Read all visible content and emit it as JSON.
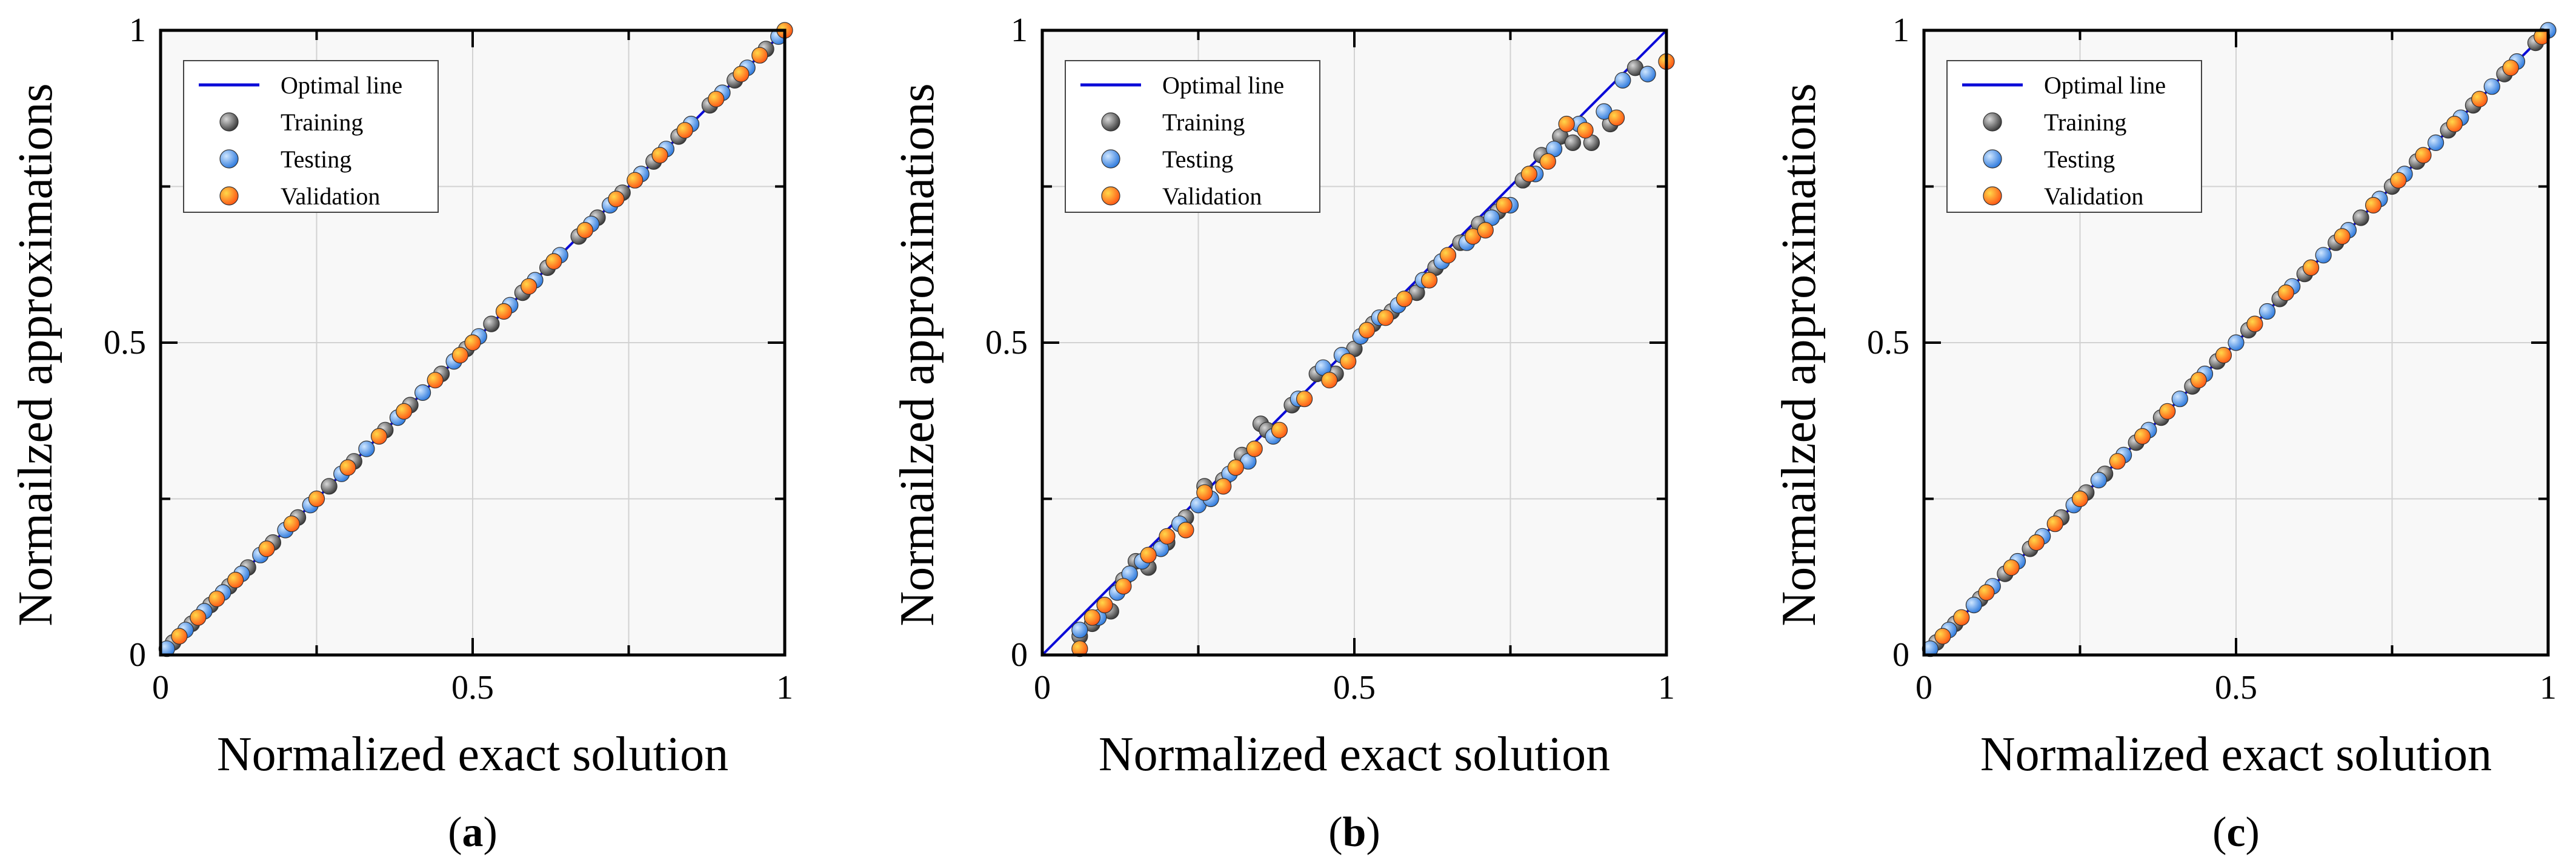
{
  "figure": {
    "colors": {
      "plot_bg": "#f8f8f8",
      "grid": "#d2d2d2",
      "optimal_line": "#0b0bd8",
      "training": "#2b2b2b",
      "training_hi": "#d8d8d8",
      "testing": "#1e6fd9",
      "testing_hi": "#cfe6ff",
      "validation": "#ff4a10",
      "validation_hi": "#ffd84a",
      "point_edge": "#333333"
    }
  },
  "chart_data": [
    {
      "type": "scatter",
      "panel_label": "a",
      "xlabel": "Normalized exact solution",
      "ylabel": "Normailzed approximations",
      "xlim": [
        0,
        1
      ],
      "ylim": [
        0,
        1
      ],
      "xticks": [
        "0",
        "0.5",
        "1"
      ],
      "yticks": [
        "0",
        "0.5",
        "1"
      ],
      "grid": true,
      "legend_position": "top-left",
      "legend": [
        "Optimal line",
        "Training",
        "Testing",
        "Validation"
      ],
      "optimal_line": {
        "x": [
          0,
          1
        ],
        "y": [
          0,
          1
        ]
      },
      "series": [
        {
          "name": "Training",
          "x": [
            0.02,
            0.05,
            0.08,
            0.11,
            0.14,
            0.18,
            0.22,
            0.27,
            0.31,
            0.36,
            0.4,
            0.45,
            0.49,
            0.53,
            0.58,
            0.62,
            0.67,
            0.7,
            0.74,
            0.79,
            0.83,
            0.88,
            0.92,
            0.97
          ],
          "y": [
            0.02,
            0.05,
            0.08,
            0.11,
            0.14,
            0.18,
            0.22,
            0.27,
            0.31,
            0.36,
            0.4,
            0.45,
            0.49,
            0.53,
            0.58,
            0.62,
            0.67,
            0.7,
            0.74,
            0.79,
            0.83,
            0.88,
            0.92,
            0.97
          ]
        },
        {
          "name": "Testing",
          "x": [
            0.01,
            0.04,
            0.07,
            0.1,
            0.13,
            0.16,
            0.2,
            0.24,
            0.29,
            0.33,
            0.38,
            0.42,
            0.47,
            0.51,
            0.56,
            0.6,
            0.64,
            0.69,
            0.72,
            0.77,
            0.81,
            0.85,
            0.9,
            0.94,
            0.99
          ],
          "y": [
            0.01,
            0.04,
            0.07,
            0.1,
            0.13,
            0.16,
            0.2,
            0.24,
            0.29,
            0.33,
            0.38,
            0.42,
            0.47,
            0.51,
            0.56,
            0.6,
            0.64,
            0.69,
            0.72,
            0.77,
            0.81,
            0.85,
            0.9,
            0.94,
            0.99
          ]
        },
        {
          "name": "Validation",
          "x": [
            0.03,
            0.06,
            0.09,
            0.12,
            0.17,
            0.21,
            0.25,
            0.3,
            0.35,
            0.39,
            0.44,
            0.48,
            0.5,
            0.55,
            0.59,
            0.63,
            0.68,
            0.73,
            0.76,
            0.8,
            0.84,
            0.89,
            0.93,
            0.96,
            1.0
          ],
          "y": [
            0.03,
            0.06,
            0.09,
            0.12,
            0.17,
            0.21,
            0.25,
            0.3,
            0.35,
            0.39,
            0.44,
            0.48,
            0.5,
            0.55,
            0.59,
            0.63,
            0.68,
            0.73,
            0.76,
            0.8,
            0.84,
            0.89,
            0.93,
            0.96,
            1.0
          ]
        }
      ]
    },
    {
      "type": "scatter",
      "panel_label": "b",
      "xlabel": "Normalized exact solution",
      "ylabel": "Normailzed approximations",
      "xlim": [
        0,
        1
      ],
      "ylim": [
        0,
        1
      ],
      "xticks": [
        "0",
        "0.5",
        "1"
      ],
      "yticks": [
        "0",
        "0.5",
        "1"
      ],
      "grid": true,
      "legend_position": "top-left",
      "legend": [
        "Optimal line",
        "Training",
        "Testing",
        "Validation"
      ],
      "optimal_line": {
        "x": [
          0,
          1
        ],
        "y": [
          0,
          1
        ]
      },
      "series": [
        {
          "name": "Training",
          "x": [
            0.06,
            0.08,
            0.11,
            0.13,
            0.15,
            0.17,
            0.2,
            0.23,
            0.26,
            0.29,
            0.32,
            0.35,
            0.36,
            0.4,
            0.44,
            0.47,
            0.5,
            0.53,
            0.56,
            0.6,
            0.63,
            0.67,
            0.7,
            0.73,
            0.77,
            0.8,
            0.83,
            0.85,
            0.88,
            0.91,
            0.95
          ],
          "y": [
            0.03,
            0.05,
            0.07,
            0.12,
            0.15,
            0.14,
            0.18,
            0.22,
            0.27,
            0.28,
            0.32,
            0.37,
            0.36,
            0.4,
            0.45,
            0.45,
            0.49,
            0.53,
            0.55,
            0.58,
            0.62,
            0.66,
            0.69,
            0.71,
            0.76,
            0.8,
            0.83,
            0.82,
            0.82,
            0.85,
            0.94
          ]
        },
        {
          "name": "Testing",
          "x": [
            0.06,
            0.09,
            0.12,
            0.14,
            0.16,
            0.19,
            0.22,
            0.25,
            0.27,
            0.3,
            0.33,
            0.37,
            0.41,
            0.45,
            0.48,
            0.51,
            0.54,
            0.57,
            0.61,
            0.64,
            0.68,
            0.72,
            0.75,
            0.79,
            0.82,
            0.86,
            0.9,
            0.93,
            0.97
          ],
          "y": [
            0.04,
            0.06,
            0.1,
            0.13,
            0.15,
            0.17,
            0.21,
            0.24,
            0.25,
            0.29,
            0.31,
            0.35,
            0.41,
            0.46,
            0.48,
            0.51,
            0.54,
            0.56,
            0.6,
            0.63,
            0.66,
            0.7,
            0.72,
            0.77,
            0.81,
            0.85,
            0.87,
            0.92,
            0.93
          ]
        },
        {
          "name": "Validation",
          "x": [
            0.06,
            0.08,
            0.1,
            0.13,
            0.17,
            0.2,
            0.23,
            0.26,
            0.29,
            0.31,
            0.34,
            0.38,
            0.42,
            0.46,
            0.49,
            0.52,
            0.55,
            0.58,
            0.62,
            0.65,
            0.69,
            0.71,
            0.74,
            0.78,
            0.81,
            0.84,
            0.87,
            0.92,
            1.0
          ],
          "y": [
            0.01,
            0.06,
            0.08,
            0.11,
            0.16,
            0.19,
            0.2,
            0.26,
            0.27,
            0.3,
            0.33,
            0.36,
            0.41,
            0.44,
            0.47,
            0.52,
            0.54,
            0.57,
            0.6,
            0.64,
            0.67,
            0.68,
            0.72,
            0.77,
            0.79,
            0.85,
            0.84,
            0.86,
            0.95
          ]
        }
      ]
    },
    {
      "type": "scatter",
      "panel_label": "c",
      "xlabel": "Normalized exact solution",
      "ylabel": "Normailzed approximations",
      "xlim": [
        0,
        1
      ],
      "ylim": [
        0,
        1
      ],
      "xticks": [
        "0",
        "0.5",
        "1"
      ],
      "yticks": [
        "0",
        "0.5",
        "1"
      ],
      "grid": true,
      "legend_position": "top-left",
      "legend": [
        "Optimal line",
        "Training",
        "Testing",
        "Validation"
      ],
      "optimal_line": {
        "x": [
          0,
          1
        ],
        "y": [
          0,
          1
        ]
      },
      "series": [
        {
          "name": "Training",
          "x": [
            0.02,
            0.05,
            0.09,
            0.13,
            0.17,
            0.22,
            0.26,
            0.29,
            0.34,
            0.38,
            0.43,
            0.47,
            0.52,
            0.57,
            0.61,
            0.66,
            0.7,
            0.75,
            0.79,
            0.84,
            0.88,
            0.93,
            0.98
          ],
          "y": [
            0.02,
            0.05,
            0.09,
            0.13,
            0.17,
            0.22,
            0.26,
            0.29,
            0.34,
            0.38,
            0.43,
            0.47,
            0.52,
            0.57,
            0.61,
            0.66,
            0.7,
            0.75,
            0.79,
            0.84,
            0.88,
            0.93,
            0.98
          ]
        },
        {
          "name": "Testing",
          "x": [
            0.01,
            0.04,
            0.08,
            0.11,
            0.15,
            0.19,
            0.24,
            0.28,
            0.32,
            0.36,
            0.41,
            0.45,
            0.5,
            0.55,
            0.59,
            0.64,
            0.68,
            0.73,
            0.77,
            0.82,
            0.86,
            0.91,
            0.95,
            1.0
          ],
          "y": [
            0.01,
            0.04,
            0.08,
            0.11,
            0.15,
            0.19,
            0.24,
            0.28,
            0.32,
            0.36,
            0.41,
            0.45,
            0.5,
            0.55,
            0.59,
            0.64,
            0.68,
            0.73,
            0.77,
            0.82,
            0.86,
            0.91,
            0.95,
            1.0
          ]
        },
        {
          "name": "Validation",
          "x": [
            0.03,
            0.06,
            0.1,
            0.14,
            0.18,
            0.21,
            0.25,
            0.31,
            0.35,
            0.39,
            0.44,
            0.48,
            0.53,
            0.58,
            0.62,
            0.67,
            0.72,
            0.76,
            0.8,
            0.85,
            0.89,
            0.94,
            0.99
          ],
          "y": [
            0.03,
            0.06,
            0.1,
            0.14,
            0.18,
            0.21,
            0.25,
            0.31,
            0.35,
            0.39,
            0.44,
            0.48,
            0.53,
            0.58,
            0.62,
            0.67,
            0.72,
            0.76,
            0.8,
            0.85,
            0.89,
            0.94,
            0.99
          ]
        }
      ]
    }
  ]
}
